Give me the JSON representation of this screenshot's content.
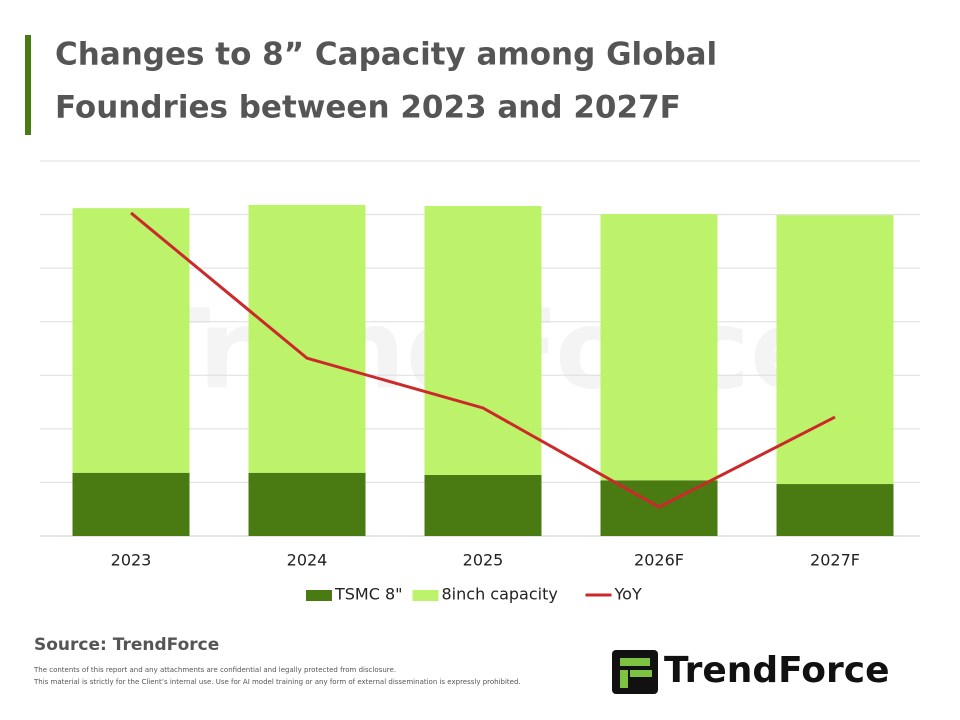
{
  "chart_data": {
    "type": "bar",
    "title": [
      "Changes to 8” Capacity among Global",
      "Foundries between 2023 and 2027F"
    ],
    "categories": [
      "2023",
      "2024",
      "2025",
      "2026F",
      "2027F"
    ],
    "stacked": true,
    "series": [
      {
        "name": "TSMC 8\"",
        "color": "#4a7a12",
        "values": [
          1.18,
          1.18,
          1.14,
          1.04,
          0.97
        ]
      },
      {
        "name": "8inch capacity",
        "color": "#bdf26b",
        "values": [
          4.94,
          5.0,
          5.02,
          4.97,
          5.02
        ]
      },
      {
        "name": "YoY",
        "type": "line",
        "color": "#cc2a2a",
        "values": [
          6.03,
          3.32,
          2.39,
          0.54,
          2.22
        ]
      }
    ],
    "ylim": [
      0,
      7
    ],
    "grid_values": [
      0,
      1,
      2,
      3,
      4,
      5,
      6,
      7
    ],
    "grid": true,
    "legend": "bottom",
    "source": "Source: TrendForce",
    "disclaimer": [
      "The contents of this report and any attachments are confidential and legally protected from disclosure.",
      "This material is strictly for the Client’s internal use. Use for AI model training or any form of external dissemination is expressly prohibited."
    ],
    "watermark": "TrendForce",
    "logo": "TrendForce"
  }
}
